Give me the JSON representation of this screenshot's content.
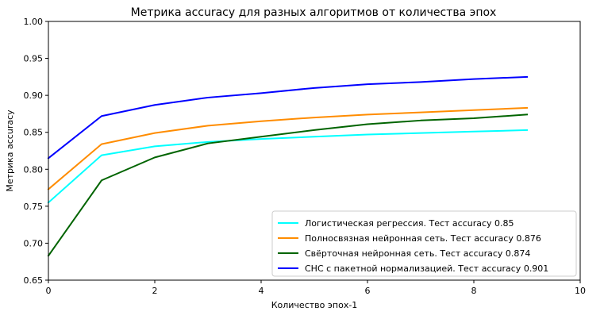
{
  "chart_data": {
    "type": "line",
    "title": "Метрика accuracy для разных алгоритмов от количества эпох",
    "xlabel": "Количество эпох-1",
    "ylabel": "Метрика accuracy",
    "xlim": [
      0,
      10
    ],
    "ylim": [
      0.65,
      1.0
    ],
    "xticks": [
      "0",
      "2",
      "4",
      "6",
      "8",
      "10"
    ],
    "yticks": [
      "0.65",
      "0.70",
      "0.75",
      "0.80",
      "0.85",
      "0.90",
      "0.95",
      "1.00"
    ],
    "grid": false,
    "legend_position": "lower-right",
    "x": [
      0,
      1,
      2,
      3,
      4,
      5,
      6,
      7,
      8,
      9
    ],
    "series": [
      {
        "name": "Логистическая регрессия. Тест accuracy 0.85",
        "color": "#00ffff",
        "values": [
          0.755,
          0.819,
          0.831,
          0.837,
          0.841,
          0.844,
          0.847,
          0.849,
          0.851,
          0.853
        ]
      },
      {
        "name": "Полносвязная нейронная сеть. Тест accuracy 0.876",
        "color": "#ff8c00",
        "values": [
          0.773,
          0.834,
          0.849,
          0.859,
          0.865,
          0.87,
          0.874,
          0.877,
          0.88,
          0.883
        ]
      },
      {
        "name": "Свёрточная нейронная сеть. Тест accuracy 0.874",
        "color": "#006400",
        "values": [
          0.683,
          0.785,
          0.816,
          0.835,
          0.844,
          0.853,
          0.861,
          0.866,
          0.869,
          0.874
        ]
      },
      {
        "name": "СНС с пакетной нормализацией. Тест accuracy 0.901",
        "color": "#0000ff",
        "values": [
          0.815,
          0.872,
          0.887,
          0.897,
          0.903,
          0.91,
          0.915,
          0.918,
          0.922,
          0.925
        ]
      }
    ]
  }
}
